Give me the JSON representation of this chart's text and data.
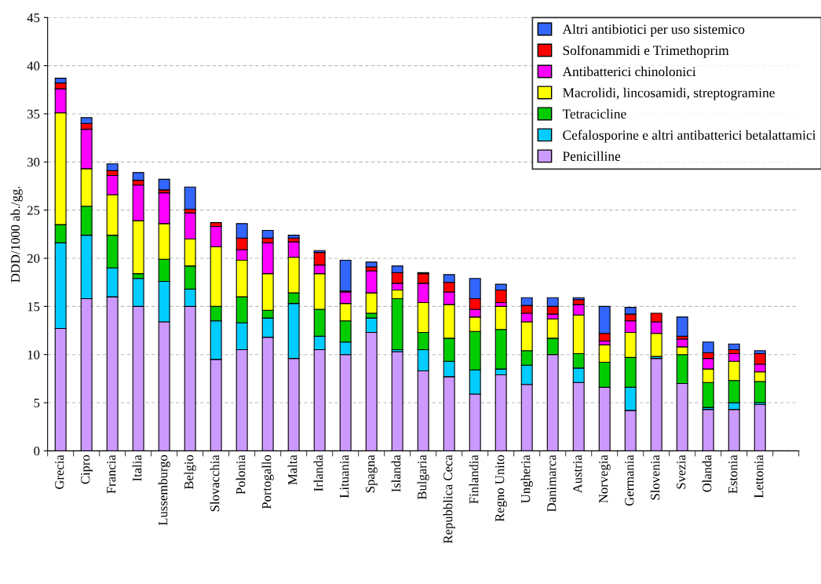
{
  "chart_data": {
    "type": "bar",
    "stacked": true,
    "ylabel": "DDD/1000 ab./gg.",
    "categories": [
      "Grecia",
      "Cipro",
      "Francia",
      "Italia",
      "Lussemburgo",
      "Belgio",
      "Slovacchia",
      "Polonia",
      "Portogallo",
      "Malta",
      "Irlanda",
      "Lituania",
      "Spagna",
      "Islanda",
      "Bulgaria",
      "Repubblica Ceca",
      "Finlandia",
      "Regno Unito",
      "Ungheria",
      "Danimarca",
      "Austria",
      "Norvegia",
      "Germania",
      "Slovenia",
      "Svezia",
      "Olanda",
      "Estonia",
      "Lettonia",
      null
    ],
    "series": [
      {
        "name": "Penicilline",
        "color": "#cc99ff",
        "values": [
          12.7,
          15.8,
          16.0,
          15.0,
          13.4,
          15.0,
          9.5,
          10.5,
          11.8,
          9.6,
          10.5,
          10.0,
          12.3,
          10.3,
          8.3,
          7.7,
          5.9,
          7.9,
          6.9,
          10.0,
          7.1,
          6.6,
          4.2,
          9.6,
          7.0,
          4.3,
          4.3,
          4.8,
          null
        ]
      },
      {
        "name": "Cefalosporine e altri antibatterici betalattamici",
        "color": "#00ccff",
        "values": [
          8.9,
          6.6,
          3.0,
          2.9,
          4.2,
          1.8,
          4.0,
          2.8,
          2.0,
          5.7,
          1.4,
          1.3,
          1.5,
          0.2,
          2.2,
          1.6,
          2.5,
          0.6,
          2.0,
          0,
          1.5,
          null,
          2.4,
          0.2,
          null,
          0.2,
          0.7,
          0.2,
          null
        ]
      },
      {
        "name": "Tetracicline",
        "color": "#00cc00",
        "values": [
          1.9,
          3.0,
          3.4,
          0.5,
          2.3,
          2.4,
          1.5,
          2.7,
          0.8,
          1.1,
          2.8,
          2.2,
          0.5,
          5.3,
          1.8,
          2.4,
          4.0,
          4.1,
          1.5,
          1.7,
          1.5,
          2.6,
          3.1,
          0,
          3.0,
          2.6,
          2.3,
          2.2,
          null
        ]
      },
      {
        "name": "Macrolidi, lincosamidi, streptogramine",
        "color": "#ffff00",
        "values": [
          11.6,
          3.9,
          4.2,
          5.5,
          3.7,
          2.8,
          6.2,
          3.8,
          3.8,
          3.7,
          3.7,
          1.8,
          2.1,
          0.9,
          3.1,
          3.5,
          1.5,
          2.4,
          3.0,
          2.0,
          4.0,
          1.8,
          2.6,
          2.4,
          0.8,
          1.4,
          2.0,
          1.0,
          null
        ]
      },
      {
        "name": "Antibatterici chinolonici",
        "color": "#ff00ff",
        "values": [
          2.5,
          4.1,
          2.0,
          3.7,
          3.2,
          2.7,
          2.1,
          1.1,
          3.2,
          1.6,
          0.9,
          1.2,
          2.3,
          0.7,
          2.0,
          1.3,
          0.8,
          0.4,
          0.9,
          0.5,
          1.1,
          0.4,
          1.2,
          1.2,
          0.8,
          1.1,
          0.8,
          0.8,
          null
        ]
      },
      {
        "name": "Solfonammidi e Trimethoprim",
        "color": "#ff0000",
        "values": [
          0.6,
          0.6,
          0.5,
          0.5,
          0.3,
          0.4,
          0.4,
          1.2,
          0.5,
          0.4,
          1.3,
          0.1,
          0.4,
          1.1,
          1.0,
          1.0,
          1.1,
          1.3,
          0.8,
          0.8,
          0.5,
          0.8,
          0.7,
          0.9,
          0.3,
          0.6,
          0.4,
          1.1,
          null
        ]
      },
      {
        "name": "Altri antibiotici per uso sistemico",
        "color": "#3366ff",
        "values": [
          0.5,
          0.6,
          0.7,
          0.8,
          1.1,
          2.3,
          0,
          1.5,
          0.8,
          0.3,
          0.2,
          3.2,
          0.5,
          0.7,
          0.1,
          0.8,
          2.1,
          0.6,
          0.8,
          0.9,
          0.2,
          2.8,
          0.7,
          0,
          2.0,
          1.1,
          0.6,
          0.3,
          null
        ]
      }
    ],
    "ylim": [
      0,
      45
    ],
    "yticks": [
      0,
      5,
      10,
      15,
      20,
      25,
      30,
      35,
      40,
      45
    ],
    "grid": "y",
    "legend": "top right"
  }
}
